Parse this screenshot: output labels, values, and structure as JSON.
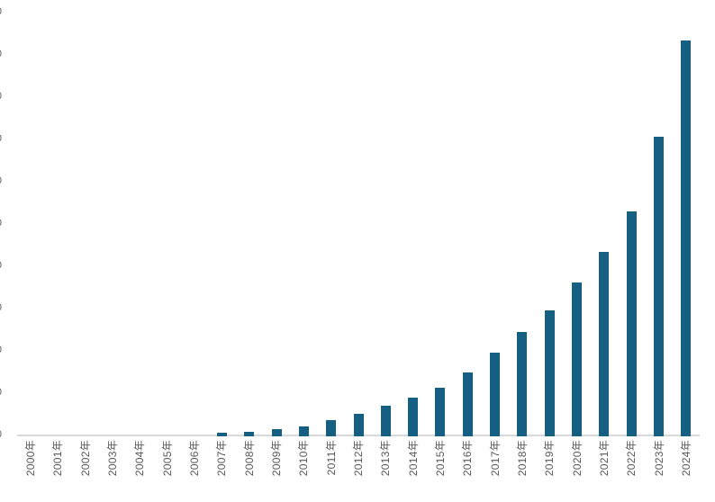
{
  "page": {
    "background": "#ffffff"
  },
  "chart_data": {
    "type": "bar",
    "title": "",
    "xlabel": "",
    "ylabel": "",
    "legend": false,
    "grid": false,
    "categories": [
      "2000年",
      "2001年",
      "2002年",
      "2003年",
      "2004年",
      "2005年",
      "2006年",
      "2007年",
      "2008年",
      "2009年",
      "2010年",
      "2011年",
      "2012年",
      "2013年",
      "2014年",
      "2015年",
      "2016年",
      "2017年",
      "2018年",
      "2019年",
      "2020年",
      "2021年",
      "2022年",
      "2023年",
      "2024年"
    ],
    "values": [
      0,
      0,
      0,
      0,
      0,
      0,
      0,
      4,
      7,
      12,
      20,
      35,
      49,
      68,
      87,
      111,
      147,
      194,
      243,
      294,
      360,
      432,
      528,
      704,
      932
    ],
    "ylim": [
      0,
      1000
    ],
    "y_tick_step": 100,
    "y_tick_count": 11,
    "y_tick_labels_clipped": true,
    "y_tick_visible_fragment": "0",
    "x_label_rotation_deg": -90,
    "colors": {
      "bar": "#156082",
      "axis_line": "#d9d9d9",
      "tick_label": "#595959"
    }
  }
}
